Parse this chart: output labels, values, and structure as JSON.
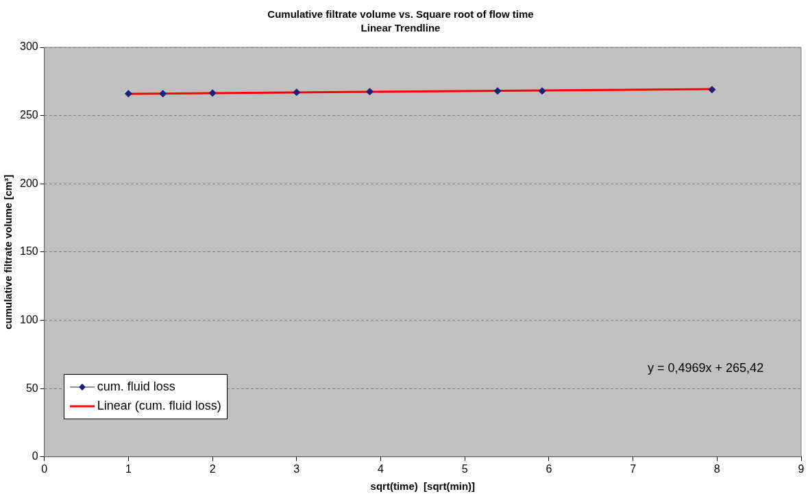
{
  "chart_data": {
    "type": "scatter",
    "title": "Cumulative filtrate volume vs. Square root of flow time",
    "subtitle": "Linear Trendline",
    "xlabel": "sqrt(time)  [sqrt(min)]",
    "ylabel": "cumulative filtrate volume [cm³]",
    "xlim": [
      0,
      9
    ],
    "xticks": [
      0,
      1,
      2,
      3,
      4,
      5,
      6,
      7,
      8,
      9
    ],
    "ylim": [
      0,
      300
    ],
    "yticks": [
      0,
      50,
      100,
      150,
      200,
      250,
      300
    ],
    "grid": "y",
    "legend": "bottom left",
    "annotations": [
      "y = 0,4969x + 265,42"
    ],
    "series": [
      {
        "name": "cum. fluid loss",
        "type": "scatter",
        "color": "#1f1f7a",
        "marker": "diamond",
        "x": [
          1,
          1.41,
          2,
          3,
          3.87,
          5.39,
          5.92,
          7.94
        ],
        "values": [
          266,
          266,
          266.5,
          267,
          267.5,
          268,
          268,
          269
        ]
      },
      {
        "name": "Linear (cum. fluid loss)",
        "type": "line",
        "color": "#ff0000",
        "marker": "none",
        "line_style": "solid",
        "x": [
          1,
          7.94
        ],
        "values": [
          265.9,
          269.4
        ]
      }
    ]
  }
}
